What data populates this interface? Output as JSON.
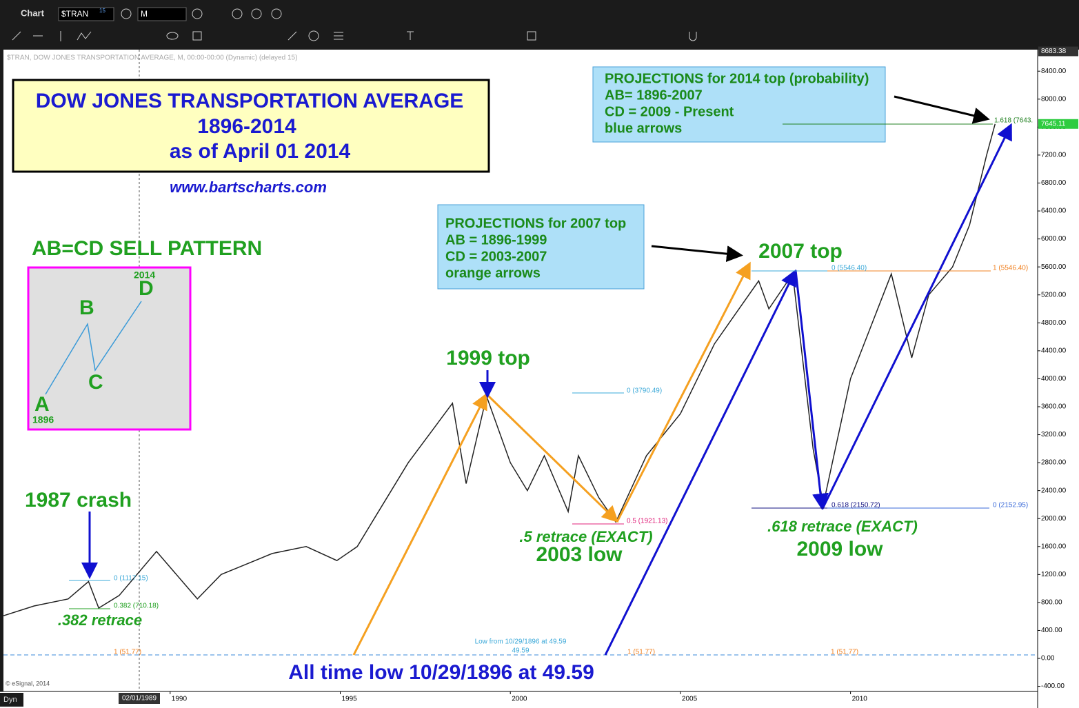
{
  "toolbar": {
    "window_title": "Chart",
    "symbol": "$TRAN",
    "symbol_badge": "15",
    "interval": "M",
    "mode": "Dyn"
  },
  "chart_data": {
    "type": "line",
    "subtitle": "$TRAN, DOW JONES TRANSPORTATION AVERAGE, M, 00:00-00:00 (Dynamic) (delayed 15)",
    "title_lines": [
      "DOW JONES TRANSPORTATION AVERAGE",
      "1896-2014",
      "as of April 01 2014"
    ],
    "website": "www.bartscharts.com",
    "pattern": {
      "title": "AB=CD SELL PATTERN",
      "points": [
        "A",
        "B",
        "C",
        "D"
      ],
      "start": "1896",
      "end": "2014"
    },
    "box_2007": [
      "PROJECTIONS for 2007 top",
      "AB = 1896-1999",
      "CD = 2003-2007",
      "orange arrows"
    ],
    "box_2014": [
      "PROJECTIONS for 2014 top (probability)",
      "AB= 1896-2007",
      "CD = 2009 - Present",
      "blue arrows"
    ],
    "annotations": [
      "1987 crash",
      ".382 retrace",
      "1999 top",
      ".5 retrace (EXACT)",
      "2003 low",
      "2007 top",
      ".618 retrace (EXACT)",
      "2009 low",
      "All time low 10/29/1896 at 49.59"
    ],
    "fib_labels": [
      "0 (1117.15)",
      "0.382 (710.18)",
      "0 (3790.49)",
      "0.5 (1921.13)",
      "0 (5546.40)",
      "1 (5546.40)",
      "0.618 (2150.72)",
      "0 (2152.95)",
      "1.618 (7643.",
      "Low from 10/29/1896 at 49.59",
      "49.59",
      "1 (51.77)",
      "1 (51.77)",
      "1 (51.77)"
    ],
    "watermark": "© eSignal, 2014",
    "cursor_date": "02/01/1989",
    "price_labels": [
      {
        "value": 8683.38,
        "label": "8683.38"
      },
      {
        "value": 7645.11,
        "label": "7645.11"
      }
    ],
    "color": "#222222",
    "x": [
      1985.1,
      1986,
      1987,
      1987.6,
      1987.9,
      1988.5,
      1989.6,
      1990.8,
      1991.5,
      1992,
      1993,
      1994,
      1994.9,
      1995.5,
      1996,
      1997,
      1998.3,
      1998.7,
      1999.3,
      2000,
      2000.5,
      2001,
      2001.7,
      2002,
      2002.6,
      2003.1,
      2004,
      2005,
      2006,
      2007.3,
      2007.6,
      2008.3,
      2008.9,
      2009.2,
      2010,
      2011.2,
      2011.8,
      2012.3,
      2013,
      2013.5,
      2014,
      2014.25
    ],
    "values": [
      610,
      750,
      850,
      1100,
      720,
      900,
      1530,
      850,
      1200,
      1300,
      1500,
      1600,
      1400,
      1600,
      2000,
      2800,
      3650,
      2500,
      3750,
      2800,
      2400,
      2900,
      2100,
      2900,
      2300,
      1950,
      2900,
      3500,
      4500,
      5400,
      5000,
      5500,
      3000,
      2200,
      4000,
      5500,
      4300,
      5200,
      5600,
      6200,
      7200,
      7645
    ],
    "xlim": [
      1985.1,
      2015.5
    ],
    "xticks": [
      1990,
      1995,
      2000,
      2005,
      2010
    ],
    "ylim": [
      -473,
      8708
    ],
    "yticks": [
      {
        "value": -400,
        "label": "-400.00"
      },
      {
        "value": 0,
        "label": "0.00"
      },
      {
        "value": 400,
        "label": "400.00"
      },
      {
        "value": 800,
        "label": "800.00"
      },
      {
        "value": 1200,
        "label": "1200.00"
      },
      {
        "value": 1600,
        "label": "1600.00"
      },
      {
        "value": 2000,
        "label": "2000.00"
      },
      {
        "value": 2400,
        "label": "2400.00"
      },
      {
        "value": 2800,
        "label": "2800.00"
      },
      {
        "value": 3200,
        "label": "3200.00"
      },
      {
        "value": 3600,
        "label": "3600.00"
      },
      {
        "value": 4000,
        "label": "4000.00"
      },
      {
        "value": 4400,
        "label": "4400.00"
      },
      {
        "value": 4800,
        "label": "4800.00"
      },
      {
        "value": 5200,
        "label": "5200.00"
      },
      {
        "value": 5600,
        "label": "5600.00"
      },
      {
        "value": 6000,
        "label": "6000.00"
      },
      {
        "value": 6400,
        "label": "6400.00"
      },
      {
        "value": 6800,
        "label": "6800.00"
      },
      {
        "value": 7200,
        "label": "7200.00"
      },
      {
        "value": 7600,
        "label": "7600.00"
      },
      {
        "value": 8000,
        "label": "8000.00"
      },
      {
        "value": 8400,
        "label": "8400.00"
      }
    ],
    "grid": false
  }
}
